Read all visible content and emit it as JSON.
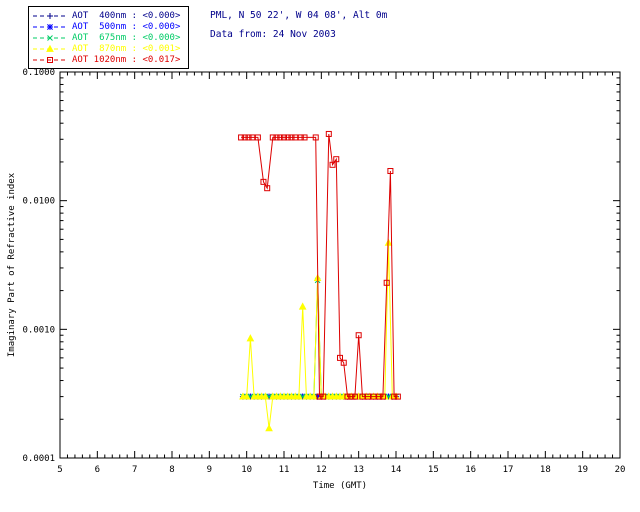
{
  "header": {
    "site_line": "PML, N 50 22', W 04 08', Alt 0m",
    "date_line": "Data from: 24 Nov 2003",
    "text_color": "#00008B"
  },
  "legend": {
    "items": [
      {
        "label": "AOT  400nm : <0.000>",
        "color": "#00008B",
        "marker": "plus"
      },
      {
        "label": "AOT  500nm : <0.000>",
        "color": "#0000FF",
        "marker": "asterisk"
      },
      {
        "label": "AOT  675nm : <0.000>",
        "color": "#00CC66",
        "marker": "x"
      },
      {
        "label": "AOT  870nm : <0.001>",
        "color": "#FFFF00",
        "marker": "triangle"
      },
      {
        "label": "AOT 1020nm : <0.017>",
        "color": "#DD0000",
        "marker": "square"
      }
    ]
  },
  "chart_data": {
    "type": "line",
    "title": "",
    "xlabel": "Time (GMT)",
    "ylabel": "Imaginary Part of Refractive index",
    "xlim": [
      5,
      20
    ],
    "ylim": [
      0.0001,
      0.1
    ],
    "yscale": "log",
    "grid": false,
    "legend_position": "top-left",
    "x_ticks": [
      5,
      6,
      7,
      8,
      9,
      10,
      11,
      12,
      13,
      14,
      15,
      16,
      17,
      18,
      19,
      20
    ],
    "y_ticks": [
      0.0001,
      0.001,
      0.01,
      0.1
    ],
    "y_tick_labels": [
      "0.0001",
      "0.0010",
      "0.0100",
      "0.1000"
    ],
    "series": [
      {
        "name": "AOT 400nm",
        "wavelength": "400nm",
        "color": "#00008B",
        "marker": "plus",
        "x": [
          9.9,
          10,
          10.1,
          10.2,
          10.3,
          10.4,
          10.5,
          10.6,
          10.7,
          10.8,
          10.9,
          11,
          11.1,
          11.2,
          11.3,
          11.4,
          11.5,
          11.6,
          11.7,
          11.8,
          11.9,
          12,
          12.1,
          12.2,
          12.3,
          12.4,
          12.5,
          12.6,
          12.7,
          12.8,
          12.9,
          13,
          13.1,
          13.2,
          13.3,
          13.4,
          13.5,
          13.6,
          13.7,
          13.8,
          13.9,
          14
        ],
        "y": [
          0.0003,
          0.0003,
          0.0003,
          0.0003,
          0.0003,
          0.0003,
          0.0003,
          0.0003,
          0.0003,
          0.0003,
          0.0003,
          0.0003,
          0.0003,
          0.0003,
          0.0003,
          0.0003,
          0.0003,
          0.0003,
          0.0003,
          0.0003,
          0.0003,
          0.0003,
          0.0003,
          0.0003,
          0.0003,
          0.0003,
          0.0003,
          0.0003,
          0.0003,
          0.0003,
          0.0003,
          0.0003,
          0.0003,
          0.0003,
          0.0003,
          0.0003,
          0.0003,
          0.0003,
          0.0003,
          0.0003,
          0.0003,
          0.0003
        ]
      },
      {
        "name": "AOT 500nm",
        "wavelength": "500nm",
        "color": "#0000FF",
        "marker": "asterisk",
        "x": [
          9.9,
          10,
          10.1,
          10.2,
          10.3,
          10.4,
          10.5,
          10.6,
          10.7,
          10.8,
          10.9,
          11,
          11.1,
          11.2,
          11.3,
          11.4,
          11.5,
          11.6,
          11.7,
          11.8,
          11.9,
          12,
          12.1,
          12.2,
          12.3,
          12.4,
          12.5,
          12.6,
          12.7,
          12.8,
          12.9,
          13,
          13.1,
          13.2,
          13.3,
          13.4,
          13.5,
          13.6,
          13.7,
          13.8,
          13.9,
          14
        ],
        "y": [
          0.0003,
          0.0003,
          0.0003,
          0.0003,
          0.0003,
          0.0003,
          0.0003,
          0.0003,
          0.0003,
          0.0003,
          0.0003,
          0.0003,
          0.0003,
          0.0003,
          0.0003,
          0.0003,
          0.0003,
          0.0003,
          0.0003,
          0.0003,
          0.0003,
          0.0003,
          0.0003,
          0.0003,
          0.0003,
          0.0003,
          0.0003,
          0.0003,
          0.0003,
          0.0003,
          0.0003,
          0.0003,
          0.0003,
          0.0003,
          0.0003,
          0.0003,
          0.0003,
          0.0003,
          0.0003,
          0.0003,
          0.0003,
          0.0003
        ]
      },
      {
        "name": "AOT 675nm",
        "wavelength": "675nm",
        "color": "#00CC66",
        "marker": "x",
        "x": [
          9.9,
          10,
          10.1,
          10.2,
          10.3,
          10.4,
          10.5,
          10.6,
          10.7,
          10.8,
          10.9,
          11,
          11.1,
          11.2,
          11.3,
          11.4,
          11.5,
          11.6,
          11.7,
          11.8,
          11.9,
          12,
          12.1,
          12.2,
          12.3,
          12.4,
          12.5,
          12.6,
          12.7,
          12.8,
          12.9,
          13,
          13.1,
          13.2,
          13.3,
          13.4,
          13.5,
          13.6,
          13.7,
          13.8,
          13.9,
          14
        ],
        "y": [
          0.0003,
          0.0003,
          0.0003,
          0.0003,
          0.0003,
          0.0003,
          0.0003,
          0.0003,
          0.0003,
          0.0003,
          0.0003,
          0.0003,
          0.0003,
          0.0003,
          0.0003,
          0.0003,
          0.0003,
          0.0003,
          0.0003,
          0.0003,
          0.0024,
          0.0003,
          0.0003,
          0.0003,
          0.0003,
          0.0003,
          0.0003,
          0.0003,
          0.0003,
          0.0003,
          0.0003,
          0.0003,
          0.0003,
          0.0003,
          0.0003,
          0.0003,
          0.0003,
          0.0003,
          0.0003,
          0.0003,
          0.0003,
          0.0003
        ]
      },
      {
        "name": "AOT 870nm",
        "wavelength": "870nm",
        "color": "#FFFF00",
        "marker": "triangle",
        "x": [
          9.9,
          10,
          10.1,
          10.2,
          10.3,
          10.4,
          10.5,
          10.6,
          10.7,
          10.8,
          10.9,
          11,
          11.1,
          11.2,
          11.3,
          11.4,
          11.5,
          11.6,
          11.7,
          11.8,
          11.9,
          12,
          12.1,
          12.2,
          12.3,
          12.4,
          12.5,
          12.6,
          12.7,
          12.8,
          12.9,
          13,
          13.1,
          13.2,
          13.3,
          13.4,
          13.5,
          13.6,
          13.7,
          13.8,
          13.9,
          14
        ],
        "y": [
          0.0003,
          0.0003,
          0.00085,
          0.0003,
          0.0003,
          0.0003,
          0.0003,
          0.00017,
          0.0003,
          0.0003,
          0.0003,
          0.0003,
          0.0003,
          0.0003,
          0.0003,
          0.0003,
          0.0015,
          0.0003,
          0.0003,
          0.0003,
          0.0025,
          0.0003,
          0.0003,
          0.0003,
          0.0003,
          0.0003,
          0.0003,
          0.0003,
          0.0003,
          0.0003,
          0.0003,
          0.0003,
          0.0003,
          0.0003,
          0.0003,
          0.0003,
          0.0003,
          0.0003,
          0.0003,
          0.0047,
          0.0003,
          0.0003
        ]
      },
      {
        "name": "AOT 1020nm",
        "wavelength": "1020nm",
        "color": "#DD0000",
        "marker": "square",
        "x": [
          9.85,
          9.95,
          10.05,
          10.15,
          10.3,
          10.45,
          10.55,
          10.7,
          10.8,
          10.9,
          11,
          11.1,
          11.2,
          11.3,
          11.45,
          11.55,
          11.85,
          11.95,
          12.05,
          12.2,
          12.3,
          12.4,
          12.5,
          12.6,
          12.7,
          12.8,
          12.9,
          13,
          13.1,
          13.25,
          13.4,
          13.55,
          13.65,
          13.75,
          13.85,
          13.95,
          14.05
        ],
        "y": [
          0.031,
          0.031,
          0.031,
          0.031,
          0.031,
          0.014,
          0.0125,
          0.031,
          0.031,
          0.031,
          0.031,
          0.031,
          0.031,
          0.031,
          0.031,
          0.031,
          0.031,
          0.0003,
          0.0003,
          0.033,
          0.019,
          0.021,
          0.0006,
          0.00055,
          0.0003,
          0.0003,
          0.0003,
          0.0009,
          0.0003,
          0.0003,
          0.0003,
          0.0003,
          0.0003,
          0.0023,
          0.017,
          0.0003,
          0.0003
        ]
      }
    ]
  }
}
